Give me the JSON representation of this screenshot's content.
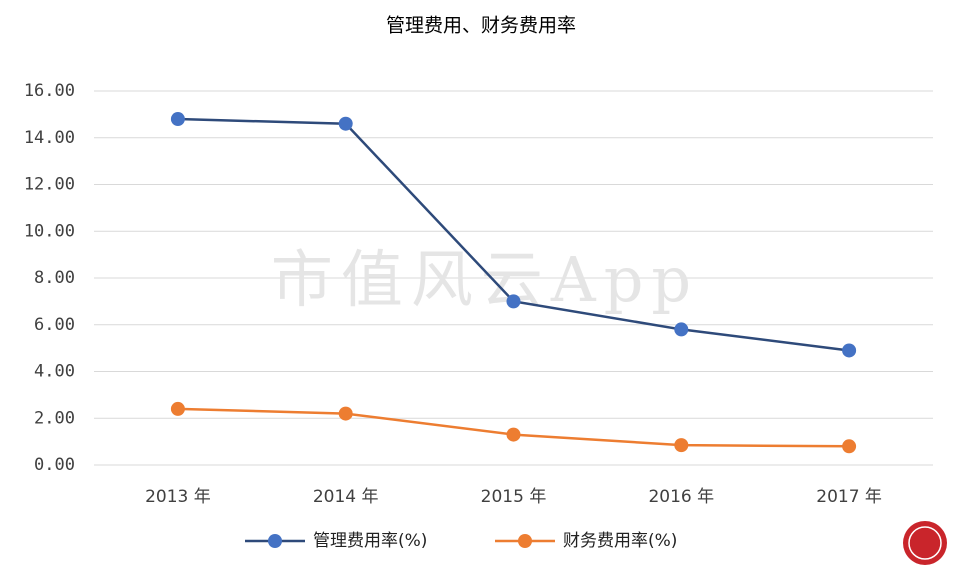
{
  "chart_data": {
    "type": "line",
    "title": "管理费用、财务费用率",
    "watermark": "市值风云App",
    "categories": [
      "2013 年",
      "2014 年",
      "2015 年",
      "2016 年",
      "2017 年"
    ],
    "series": [
      {
        "name": "管理费用率(%)",
        "color": "#4472c4",
        "line_color": "#2e4a7a",
        "values": [
          14.8,
          14.6,
          7.0,
          5.8,
          4.9
        ]
      },
      {
        "name": "财务费用率(%)",
        "color": "#ed7d31",
        "line_color": "#ed7d31",
        "values": [
          2.4,
          2.2,
          1.3,
          0.85,
          0.8
        ]
      }
    ],
    "ylim": [
      0,
      16
    ],
    "yticks": [
      {
        "value": 0,
        "label": "0.00"
      },
      {
        "value": 2,
        "label": "2.00"
      },
      {
        "value": 4,
        "label": "4.00"
      },
      {
        "value": 6,
        "label": "6.00"
      },
      {
        "value": 8,
        "label": "8.00"
      },
      {
        "value": 10,
        "label": "10.00"
      },
      {
        "value": 12,
        "label": "12.00"
      },
      {
        "value": 14,
        "label": "14.00"
      },
      {
        "value": 16,
        "label": "16.00"
      }
    ],
    "grid": true,
    "legend": "bottom"
  }
}
